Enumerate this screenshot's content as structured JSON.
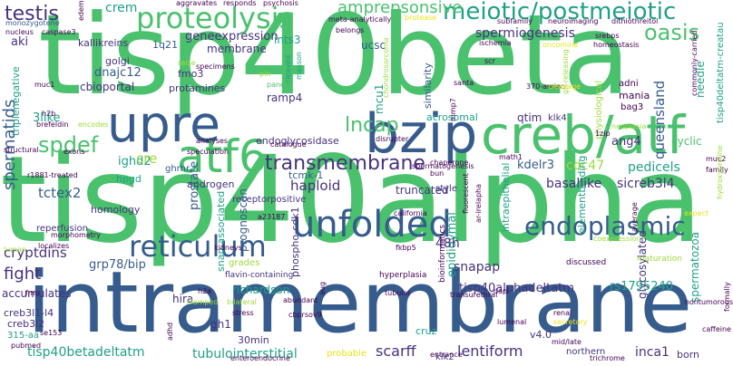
{
  "palette": {
    "yellow": "#e8e419",
    "lightgreen": "#9fda3a",
    "green": "#4ac16d",
    "teal": "#1fa187",
    "blue": "#277f8e",
    "darkblue": "#365c8d",
    "indigo": "#46327e",
    "purple": "#440154"
  },
  "words": [
    {
      "text": "tisp40beta",
      "color": "green"
    },
    {
      "text": "tisp40alpha",
      "color": "green"
    },
    {
      "text": "intramembrane",
      "color": "darkblue"
    },
    {
      "text": "creb/atf",
      "color": "green"
    },
    {
      "text": "bzip",
      "color": "darkblue"
    },
    {
      "text": "upre",
      "color": "darkblue"
    },
    {
      "text": "atf6",
      "color": "green"
    },
    {
      "text": "unfolded",
      "color": "darkblue"
    },
    {
      "text": "proteolysis",
      "color": "green"
    },
    {
      "text": "meiotic/postmeiotic",
      "color": "teal"
    },
    {
      "text": "reticulum",
      "color": "darkblue"
    },
    {
      "text": "endoplasmic",
      "color": "darkblue"
    },
    {
      "text": "oasis",
      "color": "green"
    },
    {
      "text": "transmembrane",
      "color": "indigo"
    },
    {
      "text": "lncap",
      "color": "green"
    },
    {
      "text": "spdef",
      "color": "green"
    },
    {
      "text": "testis",
      "color": "indigo"
    },
    {
      "text": "crem",
      "color": "teal"
    },
    {
      "text": "amprepsonsive",
      "color": "green"
    },
    {
      "text": "geneexpression",
      "color": "indigo"
    },
    {
      "text": "membrane",
      "color": "indigo"
    },
    {
      "text": "spermiogenesis",
      "color": "indigo"
    },
    {
      "text": "spermatids",
      "color": "darkblue"
    },
    {
      "text": "aki",
      "color": "indigo"
    },
    {
      "text": "kallikreins",
      "color": "indigo"
    },
    {
      "text": "1q21",
      "color": "darkblue"
    },
    {
      "text": "ints3",
      "color": "teal"
    },
    {
      "text": "ucsc",
      "color": "darkblue"
    },
    {
      "text": "golgi",
      "color": "indigo"
    },
    {
      "text": "dnajc12",
      "color": "darkblue"
    },
    {
      "text": "fmo3",
      "color": "indigo"
    },
    {
      "text": "cbioportal",
      "color": "indigo"
    },
    {
      "text": "protamines",
      "color": "indigo"
    },
    {
      "text": "ramp4",
      "color": "indigo"
    },
    {
      "text": "endoglycosidase",
      "color": "indigo"
    },
    {
      "text": "mcu1",
      "color": "teal"
    },
    {
      "text": "acrosomal",
      "color": "teal"
    },
    {
      "text": "qtim",
      "color": "indigo"
    },
    {
      "text": "klk4",
      "color": "indigo"
    },
    {
      "text": "ang4",
      "color": "indigo"
    },
    {
      "text": "queensland",
      "color": "darkblue"
    },
    {
      "text": "cyclic",
      "color": "green"
    },
    {
      "text": "3like",
      "color": "teal"
    },
    {
      "text": "ighd2",
      "color": "teal"
    },
    {
      "text": "tcmk-1",
      "color": "darkblue"
    },
    {
      "text": "cre",
      "color": "lightgreen"
    },
    {
      "text": "hpgd",
      "color": "teal"
    },
    {
      "text": "ghrhr",
      "color": "darkblue"
    },
    {
      "text": "androgen",
      "color": "indigo"
    },
    {
      "text": "receptorpositive",
      "color": "indigo"
    },
    {
      "text": "prostate",
      "color": "darkblue"
    },
    {
      "text": "haploid",
      "color": "indigo"
    },
    {
      "text": "kdelr3",
      "color": "darkblue"
    },
    {
      "text": "cdc47",
      "color": "lightgreen"
    },
    {
      "text": "pedicels",
      "color": "teal"
    },
    {
      "text": "basallike",
      "color": "indigo"
    },
    {
      "text": "sicreb3l4",
      "color": "indigo"
    },
    {
      "text": "tctex2",
      "color": "darkblue"
    },
    {
      "text": "homology",
      "color": "indigo"
    },
    {
      "text": "reperfusion",
      "color": "indigo"
    },
    {
      "text": "prognoscan",
      "color": "darkblue"
    },
    {
      "text": "truncated",
      "color": "indigo"
    },
    {
      "text": "style",
      "color": "indigo"
    },
    {
      "text": "epididymal",
      "color": "teal"
    },
    {
      "text": "glycosylated",
      "color": "indigo"
    },
    {
      "text": "cryptdins",
      "color": "indigo"
    },
    {
      "text": "fight",
      "color": "indigo"
    },
    {
      "text": "grp78/bip",
      "color": "darkblue"
    },
    {
      "text": "48h",
      "color": "indigo"
    },
    {
      "text": "snapap",
      "color": "indigo"
    },
    {
      "text": "tisp40alphadeltatm",
      "color": "indigo"
    },
    {
      "text": "rs1795240",
      "color": "teal"
    },
    {
      "text": "spermatozoa",
      "color": "teal"
    },
    {
      "text": "accumulates",
      "color": "indigo"
    },
    {
      "text": "creb3l1-l4",
      "color": "indigo"
    },
    {
      "text": "creb3l2",
      "color": "indigo"
    },
    {
      "text": "315-aa",
      "color": "teal"
    },
    {
      "text": "tisp40betadeltatm",
      "color": "teal"
    },
    {
      "text": "hira",
      "color": "indigo"
    },
    {
      "text": "richardson",
      "color": "teal"
    },
    {
      "text": "gh1",
      "color": "indigo"
    },
    {
      "text": "30min",
      "color": "indigo"
    },
    {
      "text": "tubulointerstitial",
      "color": "teal"
    },
    {
      "text": "scarff",
      "color": "indigo"
    },
    {
      "text": "lentiform",
      "color": "indigo"
    },
    {
      "text": "inca1",
      "color": "indigo"
    },
    {
      "text": "northern",
      "color": "indigo"
    },
    {
      "text": "born",
      "color": "indigo"
    },
    {
      "text": "v4.0",
      "color": "indigo"
    },
    {
      "text": "cruz",
      "color": "teal"
    },
    {
      "text": "probable",
      "color": "yellow"
    },
    {
      "text": "klk2",
      "color": "indigo"
    },
    {
      "text": "tisp40deltatm-creatau",
      "color": "teal"
    },
    {
      "text": "needle",
      "color": "teal"
    },
    {
      "text": "physiological",
      "color": "lightgreen"
    },
    {
      "text": "adni",
      "color": "purple"
    },
    {
      "text": "mania",
      "color": "purple"
    },
    {
      "text": "bag3",
      "color": "purple"
    },
    {
      "text": "phospho-cdk1",
      "color": "indigo"
    },
    {
      "text": "similarity",
      "color": "darkblue"
    },
    {
      "text": "flavin-containing",
      "color": "indigo"
    },
    {
      "text": "grades",
      "color": "lightgreen"
    },
    {
      "text": "maturation",
      "color": "lightgreen"
    },
    {
      "text": "discussed",
      "color": "purple"
    },
    {
      "text": "hyperplasia",
      "color": "purple"
    },
    {
      "text": "bioinformatics",
      "color": "purple"
    },
    {
      "text": "intraepithelial",
      "color": "teal"
    },
    {
      "text": "elementbinding",
      "color": "teal"
    },
    {
      "text": "snap-associated",
      "color": "teal"
    },
    {
      "text": "triplenegative",
      "color": "teal"
    },
    {
      "text": "aggravates",
      "color": "purple"
    },
    {
      "text": "responds",
      "color": "purple"
    },
    {
      "text": "psychosis",
      "color": "purple"
    },
    {
      "text": "meta-analytically",
      "color": "purple"
    },
    {
      "text": "protease",
      "color": "yellow"
    },
    {
      "text": "subfamily",
      "color": "purple"
    },
    {
      "text": "neuroimaging",
      "color": "purple"
    },
    {
      "text": "dithiothreitol",
      "color": "purple"
    },
    {
      "text": "monozygotene",
      "color": "darkblue"
    },
    {
      "text": "edem",
      "color": "purple"
    },
    {
      "text": "nucleus",
      "color": "purple"
    },
    {
      "text": "caspase3",
      "color": "purple"
    },
    {
      "text": "belongs",
      "color": "purple"
    },
    {
      "text": "ischemia",
      "color": "purple"
    },
    {
      "text": "oncomine",
      "color": "yellow"
    },
    {
      "text": "srebps",
      "color": "purple"
    },
    {
      "text": "homeostasis",
      "color": "purple"
    },
    {
      "text": "commonly-carried",
      "color": "purple"
    },
    {
      "text": "muc1",
      "color": "purple"
    },
    {
      "text": "raise",
      "color": "lightgreen"
    },
    {
      "text": "specimens",
      "color": "purple"
    },
    {
      "text": "pin",
      "color": "lightgreen"
    },
    {
      "text": "cleaved",
      "color": "teal"
    },
    {
      "text": "masson",
      "color": "teal"
    },
    {
      "text": "chondrosarcoma",
      "color": "lightgreen"
    },
    {
      "text": "scr",
      "color": "purple"
    },
    {
      "text": "paneth",
      "color": "green"
    },
    {
      "text": "santa",
      "color": "purple"
    },
    {
      "text": "370-amino",
      "color": "purple"
    },
    {
      "text": "gh-releasing",
      "color": "lightgreen"
    },
    {
      "text": "cleavage",
      "color": "yellow"
    },
    {
      "text": "h2b",
      "color": "purple"
    },
    {
      "text": "brefeldin",
      "color": "purple"
    },
    {
      "text": "encodes",
      "color": "lightgreen"
    },
    {
      "text": "catalogue",
      "color": "purple"
    },
    {
      "text": "disrupter",
      "color": "purple"
    },
    {
      "text": "mmp7",
      "color": "purple"
    },
    {
      "text": "1zip",
      "color": "purple"
    },
    {
      "text": "neoplasia",
      "color": "lightgreen"
    },
    {
      "text": "structural",
      "color": "purple"
    },
    {
      "text": "exons",
      "color": "purple"
    },
    {
      "text": "analyses",
      "color": "purple"
    },
    {
      "text": "speculation",
      "color": "purple"
    },
    {
      "text": "chaperone",
      "color": "purple"
    },
    {
      "text": "bun",
      "color": "purple"
    },
    {
      "text": "math1",
      "color": "purple"
    },
    {
      "text": "muc2",
      "color": "purple"
    },
    {
      "text": "family",
      "color": "purple"
    },
    {
      "text": "r1881-treated",
      "color": "purple"
    },
    {
      "text": "a23187",
      "color": "purple"
    },
    {
      "text": "california",
      "color": "purple"
    },
    {
      "text": "expect",
      "color": "yellow"
    },
    {
      "text": "hydroxyproline",
      "color": "lightgreen"
    },
    {
      "text": "luman",
      "color": "lightgreen"
    },
    {
      "text": "localizes",
      "color": "purple"
    },
    {
      "text": "morphometry",
      "color": "purple"
    },
    {
      "text": "kidneys",
      "color": "purple"
    },
    {
      "text": "fkbp5",
      "color": "purple"
    },
    {
      "text": "coexpression",
      "color": "lightgreen"
    },
    {
      "text": "fmo",
      "color": "purple"
    },
    {
      "text": "h2a",
      "color": "purple"
    },
    {
      "text": "clamped",
      "color": "lightgreen"
    },
    {
      "text": "bilateral",
      "color": "lightgreen"
    },
    {
      "text": "abundant",
      "color": "purple"
    },
    {
      "text": "tubular",
      "color": "purple"
    },
    {
      "text": "transurethral",
      "color": "purple"
    },
    {
      "text": "nontumorous",
      "color": "purple"
    },
    {
      "text": "se153",
      "color": "purple"
    },
    {
      "text": "adhd",
      "color": "purple"
    },
    {
      "text": "stress",
      "color": "purple"
    },
    {
      "text": "cbprsov9",
      "color": "purple"
    },
    {
      "text": "entrance",
      "color": "purple"
    },
    {
      "text": "renal",
      "color": "purple"
    },
    {
      "text": "secretory",
      "color": "yellow"
    },
    {
      "text": "mid/late",
      "color": "purple"
    },
    {
      "text": "trichrome",
      "color": "purple"
    },
    {
      "text": "caffeine",
      "color": "purple"
    },
    {
      "text": "formally",
      "color": "purple"
    },
    {
      "text": "enteroendocrine",
      "color": "purple"
    },
    {
      "text": "lumenal",
      "color": "purple"
    },
    {
      "text": "aug",
      "color": "purple"
    },
    {
      "text": "spermatogenesis",
      "color": "purple"
    },
    {
      "text": "fluorescent",
      "color": "purple"
    },
    {
      "text": "ar-irelapha",
      "color": "purple"
    },
    {
      "text": "average",
      "color": "purple"
    },
    {
      "text": "dapi",
      "color": "purple"
    },
    {
      "text": "pubmed",
      "color": "purple"
    },
    {
      "text": "combating",
      "color": "purple"
    }
  ]
}
